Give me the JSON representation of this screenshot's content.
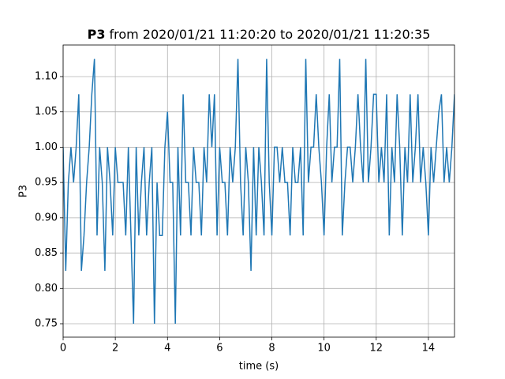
{
  "chart_data": {
    "type": "line",
    "title": {
      "bold": "P3",
      "rest": "from 2020/01/21 11:20:20 to 2020/01/21 11:20:35"
    },
    "xlabel": "time (s)",
    "ylabel": "P3",
    "color": "#1f77b4",
    "grid": true,
    "xlim": [
      0,
      15
    ],
    "xticks": [
      0,
      2,
      4,
      6,
      8,
      10,
      12,
      14
    ],
    "ylim": [
      0.731,
      1.1447
    ],
    "yticks": [
      0.75,
      {
        "value": 0.8,
        "label": "0.80"
      },
      0.85,
      {
        "value": 0.9,
        "label": "0.90"
      },
      0.95,
      {
        "value": 1.0,
        "label": "1.00"
      },
      1.05,
      {
        "value": 1.1,
        "label": "1.10"
      }
    ],
    "x": [
      0,
      0.1,
      0.2,
      0.3,
      0.4,
      0.5,
      0.6,
      0.7,
      0.8,
      0.9,
      1,
      1.1,
      1.2,
      1.3,
      1.4,
      1.5,
      1.6,
      1.7,
      1.8,
      1.9,
      2,
      2.1,
      2.2,
      2.3,
      2.4,
      2.5,
      2.6,
      2.7,
      2.8,
      2.9,
      3,
      3.1,
      3.2,
      3.3,
      3.4,
      3.5,
      3.6,
      3.7,
      3.8,
      3.9,
      4,
      4.1,
      4.2,
      4.3,
      4.4,
      4.5,
      4.6,
      4.7,
      4.8,
      4.9,
      5,
      5.1,
      5.2,
      5.3,
      5.4,
      5.5,
      5.6,
      5.7,
      5.8,
      5.9,
      6,
      6.1,
      6.2,
      6.3,
      6.4,
      6.5,
      6.6,
      6.7,
      6.8,
      6.9,
      7,
      7.1,
      7.2,
      7.3,
      7.4,
      7.5,
      7.6,
      7.7,
      7.8,
      7.9,
      8,
      8.1,
      8.2,
      8.3,
      8.4,
      8.5,
      8.6,
      8.7,
      8.8,
      8.9,
      9,
      9.1,
      9.2,
      9.3,
      9.4,
      9.5,
      9.6,
      9.7,
      9.8,
      9.9,
      10,
      10.1,
      10.2,
      10.3,
      10.4,
      10.5,
      10.6,
      10.7,
      10.8,
      10.9,
      11,
      11.1,
      11.2,
      11.3,
      11.4,
      11.5,
      11.6,
      11.7,
      11.8,
      11.9,
      12,
      12.1,
      12.2,
      12.3,
      12.4,
      12.5,
      12.6,
      12.7,
      12.8,
      12.9,
      13,
      13.1,
      13.2,
      13.3,
      13.4,
      13.5,
      13.6,
      13.7,
      13.8,
      13.9,
      14,
      14.1,
      14.2,
      14.3,
      14.4,
      14.5,
      14.6,
      14.7,
      14.8,
      14.9,
      15
    ],
    "values": [
      1.0,
      0.825,
      0.95,
      1.0,
      0.95,
      1.0,
      1.075,
      0.825,
      0.875,
      0.95,
      1.0,
      1.075,
      1.125,
      0.875,
      1.0,
      0.95,
      0.825,
      1.0,
      0.95,
      0.875,
      1.0,
      0.95,
      0.95,
      0.95,
      0.875,
      1.0,
      0.875,
      0.75,
      1.0,
      0.875,
      0.95,
      1.0,
      0.875,
      0.95,
      1.0,
      0.75,
      0.95,
      0.875,
      0.875,
      1.0,
      1.05,
      0.95,
      0.95,
      0.75,
      1.0,
      0.875,
      1.075,
      0.95,
      0.95,
      0.875,
      1.0,
      0.95,
      0.95,
      0.875,
      1.0,
      0.95,
      1.075,
      1.0,
      1.075,
      0.875,
      1.0,
      0.95,
      0.95,
      0.875,
      1.0,
      0.95,
      1.0,
      1.125,
      0.95,
      0.875,
      1.0,
      0.95,
      0.825,
      1.0,
      0.875,
      1.0,
      0.95,
      0.875,
      1.125,
      0.95,
      0.875,
      1.0,
      1.0,
      0.95,
      1.0,
      0.95,
      0.95,
      0.875,
      1.0,
      0.95,
      0.95,
      1.0,
      0.875,
      1.125,
      0.95,
      1.0,
      1.0,
      1.075,
      1.0,
      0.95,
      0.875,
      1.0,
      1.075,
      0.95,
      1.0,
      1.0,
      1.125,
      0.875,
      0.95,
      1.0,
      1.0,
      0.95,
      1.0,
      1.075,
      1.0,
      0.95,
      1.125,
      0.95,
      1.0,
      1.075,
      1.075,
      0.95,
      1.0,
      0.95,
      1.075,
      0.875,
      1.0,
      0.95,
      1.075,
      1.0,
      0.875,
      1.0,
      0.95,
      1.075,
      0.95,
      1.0,
      1.075,
      0.95,
      1.0,
      0.95,
      0.875,
      1.0,
      0.95,
      1.0,
      1.05,
      1.075,
      0.95,
      1.0,
      0.95,
      1.0,
      1.075
    ]
  }
}
